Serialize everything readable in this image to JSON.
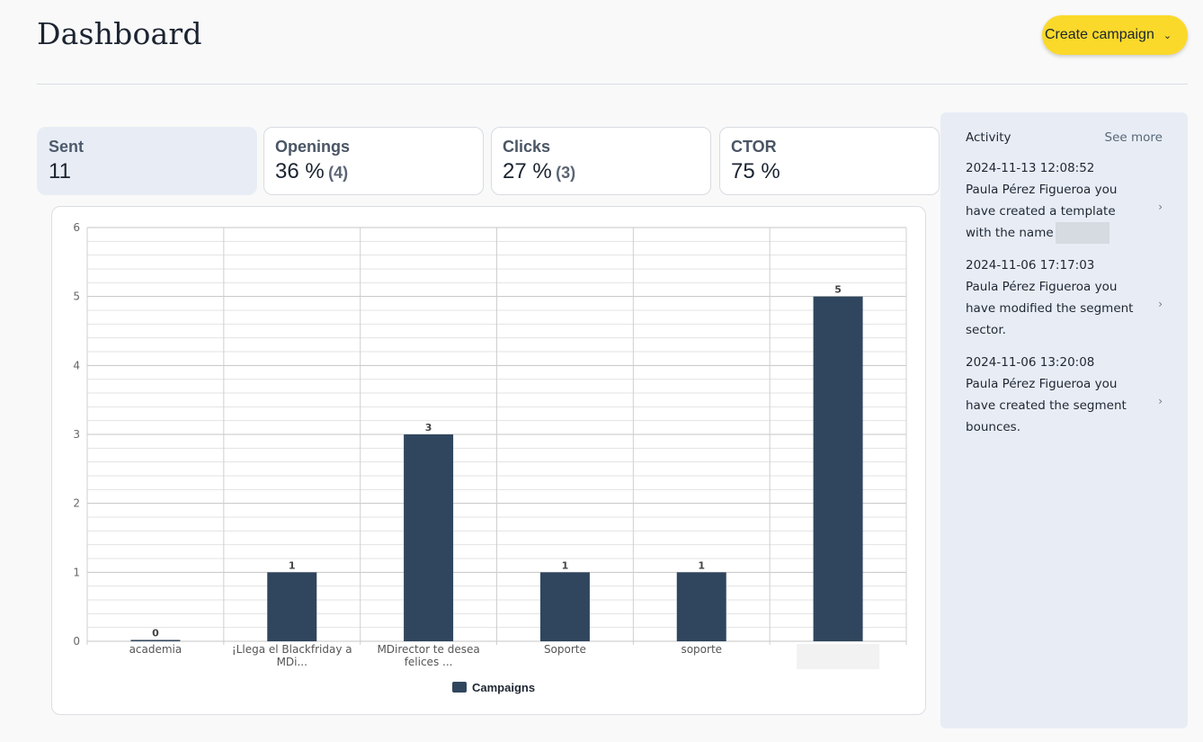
{
  "header": {
    "title": "Dashboard",
    "create_button": "Create campaign",
    "create_icon": "chevron-down-icon"
  },
  "stats": {
    "sent": {
      "label": "Sent",
      "value": "11"
    },
    "openings": {
      "label": "Openings",
      "value": "36 %",
      "sub": "(4)"
    },
    "clicks": {
      "label": "Clicks",
      "value": "27 %",
      "sub": "(3)"
    },
    "ctor": {
      "label": "CTOR",
      "value": "75 %"
    }
  },
  "colors": {
    "bar": "#30465e",
    "accent": "#fbd92a",
    "panel": "#e8edf5"
  },
  "chart_data": {
    "type": "bar",
    "categories": [
      [
        "academia"
      ],
      [
        "¡Llega el Blackfriday a",
        "MDi..."
      ],
      [
        "MDirector te desea",
        "felices ..."
      ],
      [
        "Soporte"
      ],
      [
        "soporte"
      ],
      []
    ],
    "series": [
      {
        "name": "Campaigns",
        "values": [
          0,
          1,
          3,
          1,
          1,
          5
        ]
      }
    ],
    "ylim": [
      0,
      6
    ],
    "yticks": [
      0,
      1,
      2,
      3,
      4,
      5,
      6
    ],
    "grid": true,
    "legend": "bottom-center",
    "redacted_category_index": 5
  },
  "activity": {
    "title": "Activity",
    "see_more": "See more",
    "items": [
      {
        "time": "2024-11-13 12:08:52",
        "text": "Paula Pérez Figueroa you have created a template with the name"
      },
      {
        "time": "2024-11-06 17:17:03",
        "text": "Paula Pérez Figueroa you have modified the segment sector."
      },
      {
        "time": "2024-11-06 13:20:08",
        "text": "Paula Pérez Figueroa you have created the segment bounces."
      }
    ]
  }
}
